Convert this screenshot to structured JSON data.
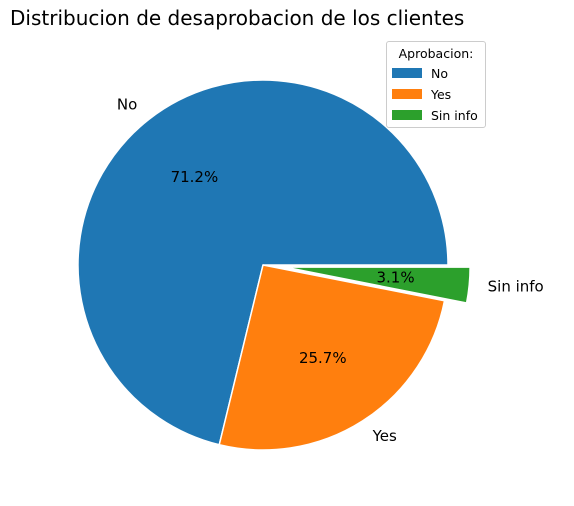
{
  "chart_data": {
    "type": "pie",
    "title": "Distribucion de desaprobacion de los clientes",
    "categories": [
      "No",
      "Yes",
      "Sin info"
    ],
    "values": [
      71.2,
      25.7,
      3.1
    ],
    "percent_labels": [
      "71.2%",
      "25.7%",
      "3.1%"
    ],
    "colors": [
      "#1f77b4",
      "#ff7f0e",
      "#2ca02c"
    ],
    "exploded": [
      false,
      false,
      true
    ],
    "legend": {
      "title": "Aprobacion:",
      "placement": "top-right",
      "entries": [
        "No",
        "Yes",
        "Sin info"
      ]
    }
  }
}
